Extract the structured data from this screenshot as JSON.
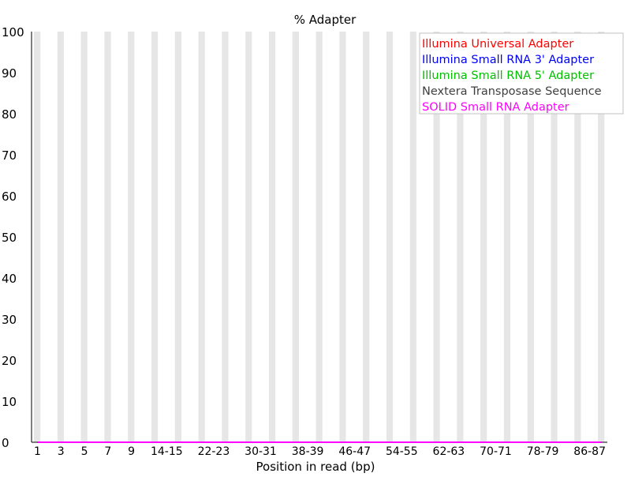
{
  "chart_data": {
    "type": "line",
    "title": "% Adapter",
    "xlabel": "Position in read (bp)",
    "ylabel": "",
    "ylim": [
      0,
      100
    ],
    "y_ticks": [
      0,
      10,
      20,
      30,
      40,
      50,
      60,
      70,
      80,
      90,
      100
    ],
    "categories": [
      "1",
      "2",
      "3",
      "4",
      "5",
      "6",
      "7",
      "8",
      "9",
      "10-11",
      "12-13",
      "14-15",
      "16-17",
      "18-19",
      "20-21",
      "22-23",
      "24-25",
      "26-27",
      "28-29",
      "30-31",
      "32-33",
      "34-35",
      "36-37",
      "38-39",
      "40-41",
      "42-43",
      "44-45",
      "46-47",
      "48-49",
      "50-51",
      "52-53",
      "54-55",
      "56-57",
      "58-59",
      "60-61",
      "62-63",
      "64-65",
      "66-67",
      "68-69",
      "70-71",
      "72-73",
      "74-75",
      "76-77",
      "78-79",
      "80-81",
      "82-83",
      "84-85",
      "86-87",
      "88-89"
    ],
    "x_tick_labels_shown": [
      "1",
      "3",
      "5",
      "7",
      "9",
      "14-15",
      "22-23",
      "30-31",
      "38-39",
      "46-47",
      "54-55",
      "62-63",
      "70-71",
      "78-79",
      "86-87"
    ],
    "series": [
      {
        "name": "Illumina Universal Adapter",
        "color": "#ff0000",
        "values": [
          0,
          0,
          0,
          0,
          0,
          0,
          0,
          0,
          0,
          0,
          0,
          0,
          0,
          0,
          0,
          0,
          0,
          0,
          0,
          0,
          0,
          0,
          0,
          0,
          0,
          0,
          0,
          0,
          0,
          0,
          0,
          0,
          0,
          0,
          0,
          0,
          0,
          0,
          0,
          0,
          0,
          0,
          0,
          0,
          0,
          0,
          0,
          0,
          0
        ]
      },
      {
        "name": "Illumina Small RNA 3' Adapter",
        "color": "#0000ff",
        "values": [
          0,
          0,
          0,
          0,
          0,
          0,
          0,
          0,
          0,
          0,
          0,
          0,
          0,
          0,
          0,
          0,
          0,
          0,
          0,
          0,
          0,
          0,
          0,
          0,
          0,
          0,
          0,
          0,
          0,
          0,
          0,
          0,
          0,
          0,
          0,
          0,
          0,
          0,
          0,
          0,
          0,
          0,
          0,
          0,
          0,
          0,
          0,
          0,
          0
        ]
      },
      {
        "name": "Illumina Small RNA 5' Adapter",
        "color": "#00c000",
        "values": [
          0,
          0,
          0,
          0,
          0,
          0,
          0,
          0,
          0,
          0,
          0,
          0,
          0,
          0,
          0,
          0,
          0,
          0,
          0,
          0,
          0,
          0,
          0,
          0,
          0,
          0,
          0,
          0,
          0,
          0,
          0,
          0,
          0,
          0,
          0,
          0,
          0,
          0,
          0,
          0,
          0,
          0,
          0,
          0,
          0,
          0,
          0,
          0,
          0
        ]
      },
      {
        "name": "Nextera Transposase Sequence",
        "color": "#404040",
        "values": [
          0,
          0,
          0,
          0,
          0,
          0,
          0,
          0,
          0,
          0,
          0,
          0,
          0,
          0,
          0,
          0,
          0,
          0,
          0,
          0,
          0,
          0,
          0,
          0,
          0,
          0,
          0,
          0,
          0,
          0,
          0,
          0,
          0,
          0,
          0,
          0,
          0,
          0,
          0,
          0,
          0,
          0,
          0,
          0,
          0,
          0,
          0,
          0,
          0
        ]
      },
      {
        "name": "SOLID Small RNA Adapter",
        "color": "#ff00ff",
        "values": [
          0,
          0,
          0,
          0,
          0,
          0,
          0,
          0,
          0,
          0,
          0,
          0,
          0,
          0,
          0,
          0,
          0,
          0,
          0,
          0,
          0,
          0,
          0,
          0,
          0,
          0,
          0,
          0,
          0,
          0,
          0,
          0,
          0,
          0,
          0,
          0,
          0,
          0,
          0,
          0,
          0,
          0,
          0,
          0,
          0,
          0,
          0,
          0,
          0
        ]
      }
    ],
    "legend_position": "top-right",
    "background_stripes": true,
    "stripe_color": "#e6e6e6",
    "axis_color": "#000000"
  }
}
